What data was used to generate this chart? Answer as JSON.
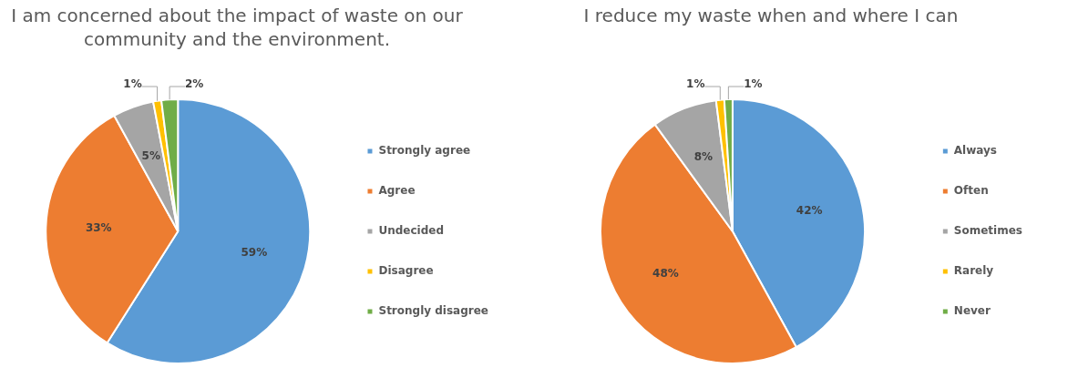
{
  "chart_data": [
    {
      "type": "pie",
      "title": "I am concerned about the impact of waste on our community and the environment.",
      "categories": [
        "Strongly agree",
        "Agree",
        "Undecided",
        "Disagree",
        "Strongly disagree"
      ],
      "values": [
        59,
        33,
        5,
        1,
        2
      ],
      "value_labels": [
        "59%",
        "33%",
        "5%",
        "1%",
        "2%"
      ],
      "colors": [
        "#5b9bd5",
        "#ed7d31",
        "#a5a5a5",
        "#ffc000",
        "#70ad47"
      ],
      "legend": "right"
    },
    {
      "type": "pie",
      "title": "I reduce my waste when and where I can",
      "categories": [
        "Always",
        "Often",
        "Sometimes",
        "Rarely",
        "Never"
      ],
      "values": [
        42,
        48,
        8,
        1,
        1
      ],
      "value_labels": [
        "42%",
        "48%",
        "8%",
        "1%",
        "1%"
      ],
      "colors": [
        "#5b9bd5",
        "#ed7d31",
        "#a5a5a5",
        "#ffc000",
        "#70ad47"
      ],
      "legend": "right"
    }
  ]
}
